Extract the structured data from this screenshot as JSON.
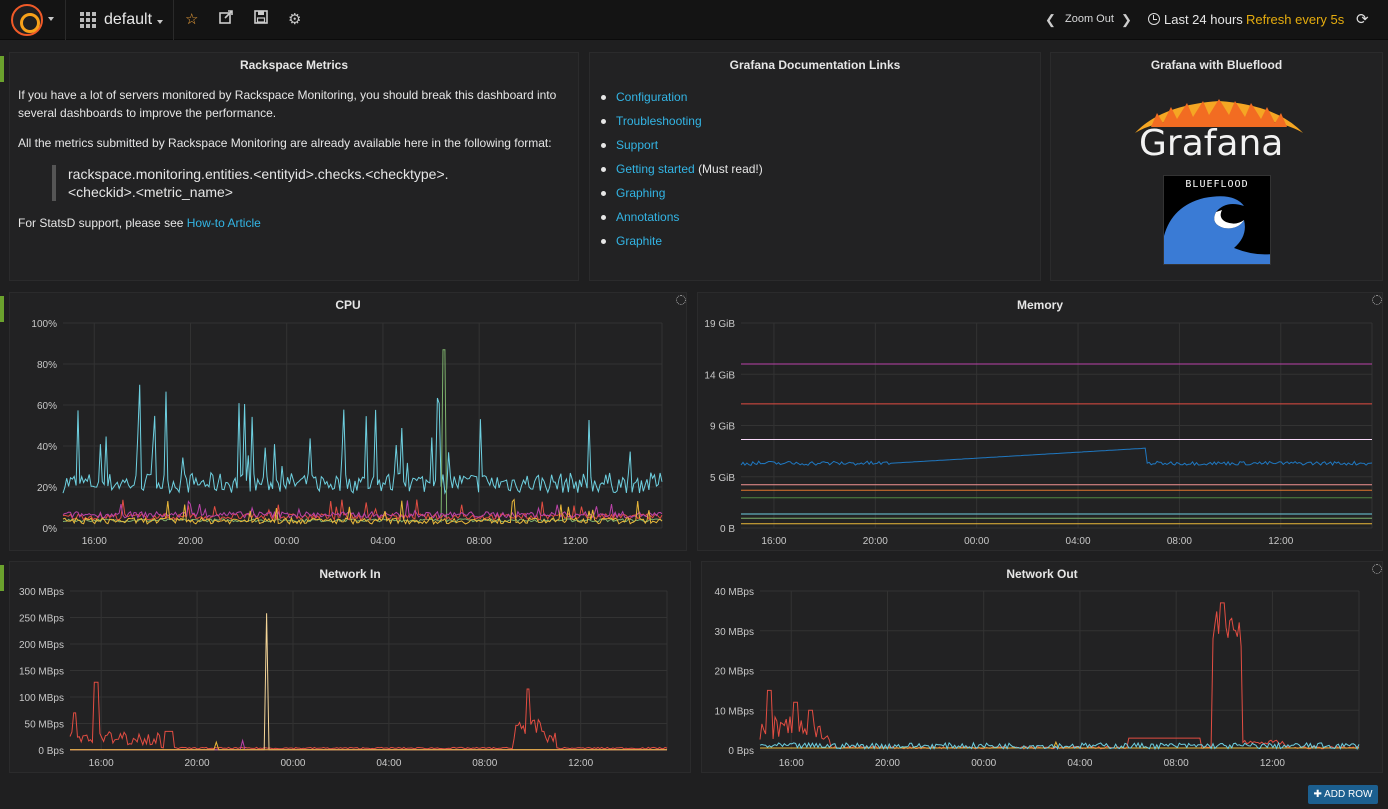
{
  "topnav": {
    "dashboard_name": "default",
    "zoom_out_label": "Zoom Out",
    "time_range": "Last 24 hours",
    "refresh_label": "Refresh every 5s"
  },
  "panels": {
    "rackspace": {
      "title": "Rackspace Metrics",
      "para1_line1": "If you have a lot of servers monitored by Rackspace Monitoring, you should break this dashboard into",
      "para1_line2": "several dashboards to improve the performance.",
      "para2": "All the metrics submitted by Rackspace Monitoring are already available here in the following format:",
      "quote_line1": "rackspace.monitoring.entities.<entityid>.checks.<checktype>.",
      "quote_line2": "<checkid>.<metric_name>",
      "statsd_prefix": "For StatsD support, please see",
      "statsd_link": "How-to Article"
    },
    "docs": {
      "title": "Grafana Documentation Links",
      "links": [
        "Configuration",
        "Troubleshooting",
        "Support",
        "Getting started",
        "Graphing",
        "Annotations",
        "Graphite"
      ],
      "getting_started_note": "(Must read!)"
    },
    "blueflood": {
      "title": "Grafana with Blueflood",
      "logo_word": "Grafana",
      "bf_word": "BLUEFLOOD"
    }
  },
  "x_ticks": [
    "16:00",
    "20:00",
    "00:00",
    "04:00",
    "08:00",
    "12:00"
  ],
  "chart_data": [
    {
      "type": "line",
      "title": "CPU",
      "yticks": [
        "100%",
        "80%",
        "60%",
        "40%",
        "20%",
        "0%"
      ],
      "ylim": [
        0,
        100
      ],
      "xlim": [
        14.7,
        39.6
      ],
      "x_start": 14.7,
      "x_end": 39.6,
      "x_unit": "hour",
      "grid": true,
      "series": [
        {
          "color": "#6ed0e0",
          "pattern": "spiky",
          "base": 22,
          "peaks": [
            40,
            60,
            70,
            68,
            66,
            58,
            55,
            48,
            45,
            58,
            66,
            65,
            60,
            65,
            72,
            60
          ]
        },
        {
          "color": "#7eb26d",
          "pattern": "flat",
          "base": 3,
          "peaks": [
            87
          ]
        },
        {
          "color": "#e24d42",
          "pattern": "noise",
          "base": 4
        },
        {
          "color": "#ba43a9",
          "pattern": "noise",
          "base": 5
        },
        {
          "color": "#eab839",
          "pattern": "noise",
          "base": 2
        }
      ]
    },
    {
      "type": "line",
      "title": "Memory",
      "yticks": [
        "19 GiB",
        "14 GiB",
        "9 GiB",
        "5 GiB",
        "0 B"
      ],
      "ylim": [
        0,
        19
      ],
      "xlim": [
        14.7,
        39.6
      ],
      "x_start": 14.7,
      "x_end": 39.6,
      "x_unit": "hour",
      "grid": true,
      "series": [
        {
          "color": "#ba43a9",
          "level": 15.2
        },
        {
          "color": "#e24d42",
          "level": 11.5
        },
        {
          "color": "#f9d9f9",
          "level": 8.2
        },
        {
          "color": "#1f78c1",
          "level": 6.0,
          "pattern": "memory"
        },
        {
          "color": "#f29191",
          "level": 4.0
        },
        {
          "color": "#e0752d",
          "level": 3.5
        },
        {
          "color": "#508642",
          "level": 2.8
        },
        {
          "color": "#6ed0e0",
          "level": 1.3
        },
        {
          "color": "#7eb26d",
          "level": 0.9
        },
        {
          "color": "#eab839",
          "level": 0.4
        }
      ]
    },
    {
      "type": "line",
      "title": "Network In",
      "yticks": [
        "300 MBps",
        "250 MBps",
        "200 MBps",
        "150 MBps",
        "100 MBps",
        "50 MBps",
        "0 Bps"
      ],
      "ylim": [
        0,
        300
      ],
      "xlim": [
        14.7,
        39.6
      ],
      "x_start": 14.7,
      "x_end": 39.6,
      "x_unit": "hour",
      "grid": true,
      "series": [
        {
          "color": "#e24d42",
          "pattern": "netin"
        },
        {
          "color": "#f4d598",
          "pattern": "spike",
          "at": 22.9,
          "peak": 258
        },
        {
          "color": "#ba43a9",
          "pattern": "spike",
          "at": 21.9,
          "peak": 18
        },
        {
          "color": "#eab839",
          "pattern": "spike",
          "at": 20.8,
          "peak": 15
        }
      ]
    },
    {
      "type": "line",
      "title": "Network Out",
      "yticks": [
        "40 MBps",
        "30 MBps",
        "20 MBps",
        "10 MBps",
        "0 Bps"
      ],
      "ylim": [
        0,
        40
      ],
      "xlim": [
        14.7,
        39.6
      ],
      "x_start": 14.7,
      "x_end": 39.6,
      "x_unit": "hour",
      "grid": true,
      "series": [
        {
          "color": "#e24d42",
          "pattern": "netout"
        },
        {
          "color": "#eab839",
          "pattern": "spike",
          "at": 27.0,
          "peak": 2
        },
        {
          "color": "#6ed0e0",
          "pattern": "flat",
          "base": 0.3
        }
      ]
    }
  ],
  "add_row_label": "ADD ROW"
}
